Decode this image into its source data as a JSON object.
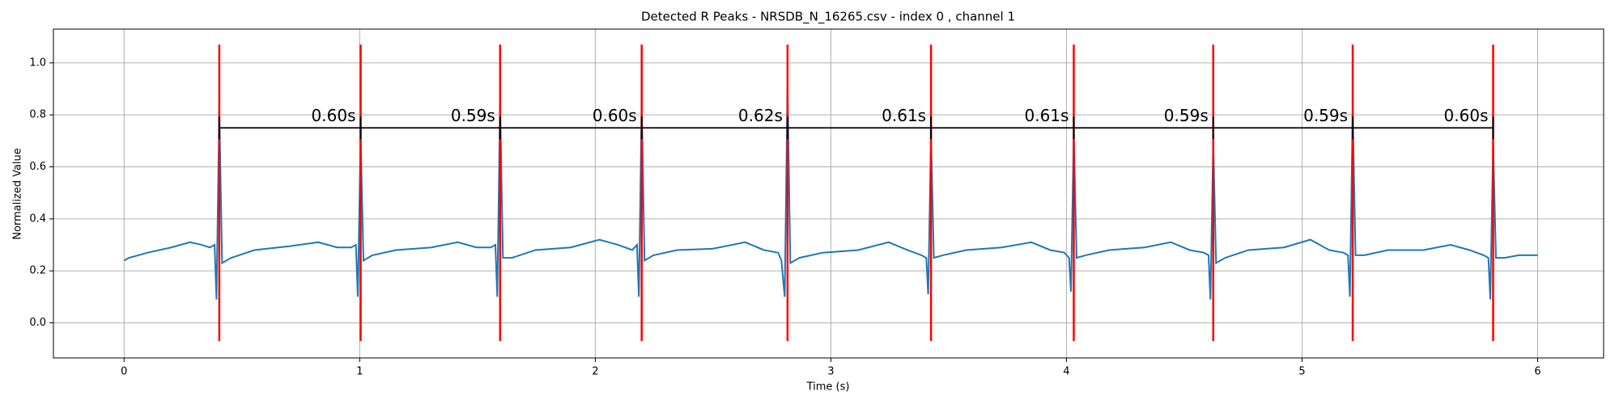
{
  "chart_data": {
    "type": "line",
    "title": "Detected R Peaks - NRSDB_N_16265.csv - index 0 , channel 1",
    "xlabel": "Time (s)",
    "ylabel": "Normalized Value",
    "xlim": [
      -0.3,
      6.28
    ],
    "ylim": [
      -0.135,
      1.13
    ],
    "xticks": [
      0,
      1,
      2,
      3,
      4,
      5,
      6
    ],
    "yticks": [
      {
        "value": 0,
        "label": "0.0"
      },
      0.2,
      0.4,
      0.6,
      0.8,
      {
        "value": 1,
        "label": "1.0"
      }
    ],
    "grid": true,
    "series": [
      {
        "color": "#1f77b4",
        "x": [
          0,
          0.02,
          0.1,
          0.2,
          0.28,
          0.33,
          0.364,
          0.384,
          0.392,
          0.404,
          0.416,
          0.454,
          0.554,
          0.704,
          0.824,
          0.904,
          0.964,
          0.984,
          0.992,
          1.004,
          1.016,
          1.054,
          1.154,
          1.304,
          1.416,
          1.496,
          1.556,
          1.576,
          1.584,
          1.596,
          1.608,
          1.646,
          1.746,
          1.896,
          2.017,
          2.097,
          2.157,
          2.177,
          2.185,
          2.197,
          2.209,
          2.247,
          2.347,
          2.497,
          2.636,
          2.716,
          2.776,
          2.79,
          2.804,
          2.816,
          2.828,
          2.866,
          2.966,
          3.116,
          3.245,
          3.325,
          3.385,
          3.405,
          3.413,
          3.425,
          3.437,
          3.475,
          3.575,
          3.725,
          3.851,
          3.931,
          3.991,
          4.011,
          4.019,
          4.031,
          4.043,
          4.081,
          4.181,
          4.331,
          4.443,
          4.523,
          4.583,
          4.603,
          4.611,
          4.623,
          4.635,
          4.673,
          4.773,
          4.923,
          5.035,
          5.115,
          5.175,
          5.195,
          5.203,
          5.215,
          5.227,
          5.265,
          5.365,
          5.515,
          5.631,
          5.711,
          5.771,
          5.791,
          5.799,
          5.811,
          5.823,
          5.86,
          5.92,
          6.0
        ],
        "values": [
          0.24,
          0.25,
          0.27,
          0.29,
          0.31,
          0.3,
          0.29,
          0.3,
          0.09,
          0.82,
          0.23,
          0.25,
          0.28,
          0.295,
          0.31,
          0.29,
          0.29,
          0.3,
          0.1,
          0.72,
          0.24,
          0.26,
          0.28,
          0.29,
          0.31,
          0.29,
          0.29,
          0.3,
          0.1,
          0.85,
          0.25,
          0.25,
          0.28,
          0.29,
          0.32,
          0.3,
          0.28,
          0.3,
          0.1,
          0.85,
          0.24,
          0.26,
          0.28,
          0.285,
          0.31,
          0.28,
          0.27,
          0.24,
          0.1,
          0.91,
          0.23,
          0.25,
          0.27,
          0.28,
          0.31,
          0.28,
          0.26,
          0.25,
          0.11,
          0.72,
          0.25,
          0.26,
          0.28,
          0.29,
          0.31,
          0.28,
          0.27,
          0.25,
          0.12,
          0.73,
          0.25,
          0.26,
          0.28,
          0.29,
          0.31,
          0.28,
          0.27,
          0.26,
          0.09,
          0.7,
          0.23,
          0.25,
          0.28,
          0.29,
          0.32,
          0.28,
          0.27,
          0.26,
          0.1,
          0.82,
          0.26,
          0.26,
          0.28,
          0.28,
          0.3,
          0.28,
          0.26,
          0.25,
          0.09,
          0.69,
          0.25,
          0.25,
          0.26,
          0.26
        ]
      }
    ],
    "peaks": [
      0.404,
      1.004,
      1.596,
      2.197,
      2.816,
      3.425,
      4.031,
      4.623,
      5.215,
      5.811
    ],
    "peak_color": "#ff0000",
    "peak_line_range": [
      -0.07,
      1.07
    ],
    "interval_y": 0.75,
    "interval_color": "#000000",
    "intervals": {
      "values": [
        0.6,
        0.59,
        0.6,
        0.62,
        0.61,
        0.61,
        0.59,
        0.59,
        0.6
      ],
      "value_labels": [
        "0.60s",
        "0.59s",
        "0.60s",
        "0.62s",
        "0.61s",
        "0.61s",
        "0.59s",
        "0.59s",
        "0.60s"
      ]
    }
  }
}
